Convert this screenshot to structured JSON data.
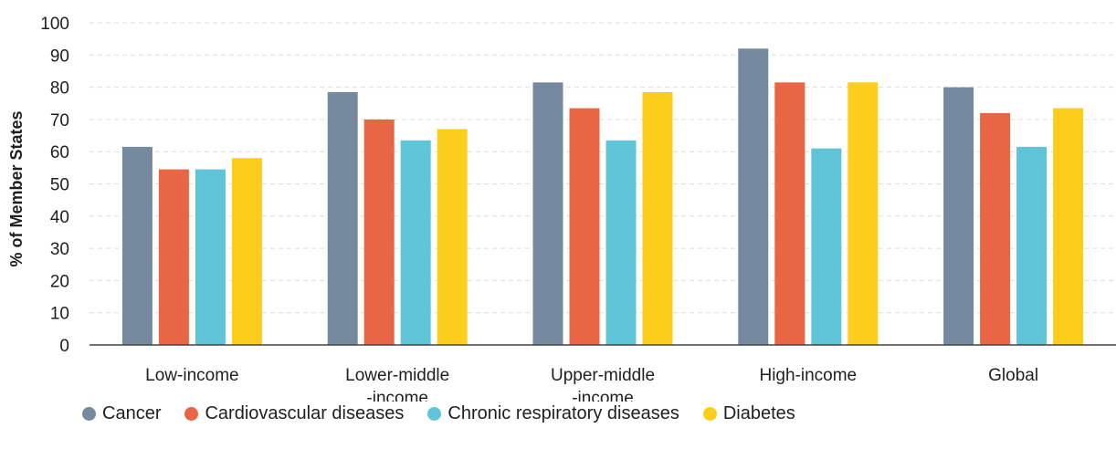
{
  "chart_data": {
    "type": "bar",
    "ylabel": "% of Member States",
    "xlabel": "",
    "ylim": [
      0,
      100
    ],
    "yticks": [
      0,
      10,
      20,
      30,
      40,
      50,
      60,
      70,
      80,
      90,
      100
    ],
    "categories": [
      [
        "Low-income"
      ],
      [
        "Lower-middle",
        "-income"
      ],
      [
        "Upper-middle",
        "-income"
      ],
      [
        "High-income"
      ],
      [
        "Global"
      ]
    ],
    "series": [
      {
        "name": "Cancer",
        "color": "#768a9f",
        "values": [
          61.5,
          78.5,
          81.5,
          92,
          80
        ]
      },
      {
        "name": "Cardiovascular diseases",
        "color": "#e96645",
        "values": [
          54.5,
          70,
          73.5,
          81.5,
          72
        ]
      },
      {
        "name": "Chronic respiratory diseases",
        "color": "#5fc4d8",
        "values": [
          54.5,
          63.5,
          63.5,
          61,
          61.5
        ]
      },
      {
        "name": "Diabetes",
        "color": "#fccd1b",
        "values": [
          58,
          67,
          78.5,
          81.5,
          73.5
        ]
      }
    ],
    "grid": true,
    "legend_position": "bottom-left"
  }
}
